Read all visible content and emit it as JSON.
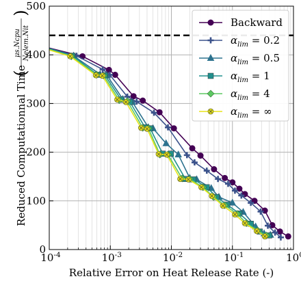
{
  "chart_data": {
    "type": "line",
    "xscale": "log",
    "xlim": [
      0.0001,
      1
    ],
    "ylim": [
      0,
      500
    ],
    "grid": true,
    "legend_position": "top-right",
    "xlabel": "Relative Error on Heat Release Rate (-)",
    "ylabel_main": "Reduced Computationnal Time",
    "ylabel_fraction": "μs.Ncpu / Nelem.Nit",
    "x_tick_labels": [
      "10^-4",
      "10^-3",
      "10^-2",
      "10^-1",
      "10^0"
    ],
    "y_tick_labels": [
      "0",
      "100",
      "200",
      "300",
      "400",
      "500"
    ],
    "y_ticks": [
      0,
      100,
      200,
      300,
      400,
      500
    ],
    "reference_line": {
      "y": 440,
      "style": "dashed",
      "color": "#000000"
    },
    "series": [
      {
        "name": "Backward",
        "color": "#440154",
        "marker": "circle",
        "points": [
          [
            0.0001,
            414
          ],
          [
            0.00035,
            397
          ],
          [
            0.00095,
            369
          ],
          [
            0.0012,
            359
          ],
          [
            0.0024,
            315
          ],
          [
            0.0034,
            306
          ],
          [
            0.0064,
            282
          ],
          [
            0.011,
            249
          ],
          [
            0.022,
            208
          ],
          [
            0.03,
            193
          ],
          [
            0.05,
            165
          ],
          [
            0.075,
            147
          ],
          [
            0.1,
            138
          ],
          [
            0.13,
            125
          ],
          [
            0.16,
            114
          ],
          [
            0.23,
            100
          ],
          [
            0.34,
            80
          ],
          [
            0.45,
            50
          ],
          [
            0.6,
            37
          ],
          [
            0.82,
            27
          ]
        ]
      },
      {
        "name": "α_lim = 0.2",
        "color": "#3b528b",
        "marker": "plus",
        "points": [
          [
            0.0001,
            413
          ],
          [
            0.00028,
            398
          ],
          [
            0.00075,
            370
          ],
          [
            0.00098,
            359
          ],
          [
            0.0019,
            314
          ],
          [
            0.0027,
            304
          ],
          [
            0.0052,
            281
          ],
          [
            0.0088,
            251
          ],
          [
            0.018,
            194
          ],
          [
            0.024,
            179
          ],
          [
            0.038,
            162
          ],
          [
            0.058,
            145
          ],
          [
            0.085,
            135
          ],
          [
            0.11,
            121
          ],
          [
            0.14,
            111
          ],
          [
            0.2,
            96
          ],
          [
            0.29,
            78
          ],
          [
            0.38,
            49
          ],
          [
            0.5,
            35
          ],
          [
            0.62,
            25
          ]
        ]
      },
      {
        "name": "α_lim = 0.5",
        "color": "#2c728e",
        "marker": "triangle",
        "points": [
          [
            0.0001,
            413
          ],
          [
            0.00025,
            398
          ],
          [
            0.00068,
            360
          ],
          [
            0.00088,
            358
          ],
          [
            0.0016,
            309
          ],
          [
            0.0023,
            303
          ],
          [
            0.0042,
            251
          ],
          [
            0.005,
            249
          ],
          [
            0.0082,
            218
          ],
          [
            0.013,
            195
          ],
          [
            0.02,
            147
          ],
          [
            0.026,
            144
          ],
          [
            0.045,
            126
          ],
          [
            0.06,
            108
          ],
          [
            0.1,
            96
          ],
          [
            0.15,
            77
          ],
          [
            0.24,
            47
          ],
          [
            0.33,
            33
          ],
          [
            0.42,
            30
          ]
        ]
      },
      {
        "name": "α_lim = 1",
        "color": "#21908d",
        "marker": "square",
        "points": [
          [
            0.0001,
            412
          ],
          [
            0.00024,
            398
          ],
          [
            0.00062,
            359
          ],
          [
            0.00082,
            358
          ],
          [
            0.0015,
            308
          ],
          [
            0.0021,
            303
          ],
          [
            0.0037,
            251
          ],
          [
            0.0045,
            249
          ],
          [
            0.0072,
            197
          ],
          [
            0.0098,
            197
          ],
          [
            0.017,
            145
          ],
          [
            0.023,
            144
          ],
          [
            0.038,
            128
          ],
          [
            0.055,
            108
          ],
          [
            0.082,
            92
          ],
          [
            0.13,
            74
          ],
          [
            0.2,
            53
          ],
          [
            0.28,
            37
          ],
          [
            0.4,
            29
          ]
        ]
      },
      {
        "name": "α_lim = 4",
        "color": "#5dc962",
        "marker": "diamond",
        "points": [
          [
            0.0001,
            411
          ],
          [
            0.00023,
            397
          ],
          [
            0.0006,
            359
          ],
          [
            0.00078,
            357
          ],
          [
            0.0014,
            307
          ],
          [
            0.0019,
            305
          ],
          [
            0.0034,
            250
          ],
          [
            0.0042,
            249
          ],
          [
            0.0065,
            195
          ],
          [
            0.0088,
            195
          ],
          [
            0.015,
            146
          ],
          [
            0.02,
            145
          ],
          [
            0.033,
            128
          ],
          [
            0.049,
            108
          ],
          [
            0.075,
            91
          ],
          [
            0.12,
            73
          ],
          [
            0.17,
            54
          ],
          [
            0.26,
            39
          ],
          [
            0.36,
            29
          ]
        ]
      },
      {
        "name": "α_lim = ∞",
        "color": "#e8e419",
        "marker": "x-circle",
        "points": [
          [
            0.0001,
            410
          ],
          [
            0.00022,
            397
          ],
          [
            0.00058,
            358
          ],
          [
            0.00074,
            357
          ],
          [
            0.0013,
            308
          ],
          [
            0.0018,
            303
          ],
          [
            0.0032,
            250
          ],
          [
            0.004,
            248
          ],
          [
            0.0062,
            196
          ],
          [
            0.0084,
            195
          ],
          [
            0.014,
            145
          ],
          [
            0.019,
            144
          ],
          [
            0.031,
            128
          ],
          [
            0.046,
            110
          ],
          [
            0.07,
            90
          ],
          [
            0.11,
            72
          ],
          [
            0.16,
            54
          ],
          [
            0.25,
            38
          ],
          [
            0.34,
            27
          ]
        ]
      }
    ]
  }
}
